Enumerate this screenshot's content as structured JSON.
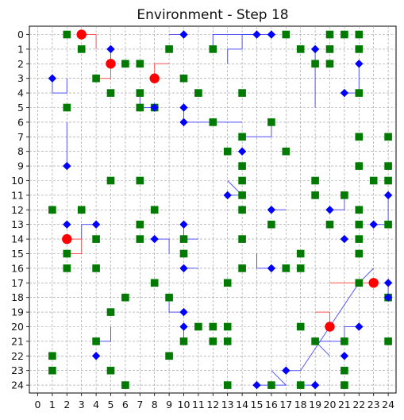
{
  "title": "Environment - Step 18",
  "grid": {
    "cols": 25,
    "rows": 25,
    "x_ticks": [
      "0",
      "1",
      "2",
      "3",
      "4",
      "5",
      "6",
      "7",
      "8",
      "9",
      "10",
      "11",
      "12",
      "13",
      "14",
      "15",
      "16",
      "17",
      "18",
      "19",
      "20",
      "21",
      "22",
      "23",
      "24"
    ],
    "y_ticks": [
      "0",
      "1",
      "2",
      "3",
      "4",
      "5",
      "6",
      "7",
      "8",
      "9",
      "10",
      "11",
      "12",
      "13",
      "14",
      "15",
      "16",
      "17",
      "18",
      "19",
      "20",
      "21",
      "22",
      "23",
      "24"
    ],
    "y_inverted": true,
    "gridlines": "dashed"
  },
  "colors": {
    "resource": "#007a00",
    "agent_blue": "#0000ff",
    "agent_red": "#ff0000",
    "trail_blue": "#3a3aff",
    "trail_red": "#ff3a3a",
    "grid": "#9a9a9a"
  },
  "resources": [
    [
      2,
      0
    ],
    [
      20,
      0
    ],
    [
      21,
      0
    ],
    [
      22,
      0
    ],
    [
      17,
      0
    ],
    [
      3,
      1
    ],
    [
      9,
      1
    ],
    [
      12,
      1
    ],
    [
      18,
      1
    ],
    [
      20,
      1
    ],
    [
      22,
      1
    ],
    [
      6,
      2
    ],
    [
      7,
      2
    ],
    [
      19,
      2
    ],
    [
      20,
      2
    ],
    [
      4,
      3
    ],
    [
      10,
      3
    ],
    [
      5,
      4
    ],
    [
      7,
      4
    ],
    [
      11,
      4
    ],
    [
      14,
      4
    ],
    [
      22,
      4
    ],
    [
      2,
      5
    ],
    [
      7,
      5
    ],
    [
      8,
      5
    ],
    [
      12,
      6
    ],
    [
      16,
      6
    ],
    [
      14,
      7
    ],
    [
      22,
      7
    ],
    [
      24,
      7
    ],
    [
      13,
      8
    ],
    [
      17,
      8
    ],
    [
      14,
      9
    ],
    [
      22,
      9
    ],
    [
      24,
      9
    ],
    [
      5,
      10
    ],
    [
      7,
      10
    ],
    [
      14,
      10
    ],
    [
      19,
      10
    ],
    [
      23,
      10
    ],
    [
      24,
      10
    ],
    [
      14,
      11
    ],
    [
      19,
      11
    ],
    [
      21,
      11
    ],
    [
      1,
      12
    ],
    [
      3,
      12
    ],
    [
      8,
      12
    ],
    [
      14,
      12
    ],
    [
      22,
      12
    ],
    [
      7,
      13
    ],
    [
      16,
      13
    ],
    [
      20,
      13
    ],
    [
      22,
      13
    ],
    [
      24,
      13
    ],
    [
      4,
      14
    ],
    [
      7,
      14
    ],
    [
      10,
      14
    ],
    [
      14,
      14
    ],
    [
      22,
      14
    ],
    [
      2,
      15
    ],
    [
      10,
      15
    ],
    [
      18,
      15
    ],
    [
      22,
      15
    ],
    [
      2,
      16
    ],
    [
      4,
      16
    ],
    [
      14,
      16
    ],
    [
      17,
      16
    ],
    [
      18,
      16
    ],
    [
      8,
      17
    ],
    [
      13,
      17
    ],
    [
      22,
      17
    ],
    [
      6,
      18
    ],
    [
      9,
      18
    ],
    [
      24,
      18
    ],
    [
      5,
      19
    ],
    [
      11,
      20
    ],
    [
      12,
      20
    ],
    [
      13,
      20
    ],
    [
      18,
      20
    ],
    [
      4,
      21
    ],
    [
      10,
      21
    ],
    [
      12,
      21
    ],
    [
      13,
      21
    ],
    [
      19,
      21
    ],
    [
      21,
      21
    ],
    [
      24,
      21
    ],
    [
      1,
      22
    ],
    [
      9,
      22
    ],
    [
      1,
      23
    ],
    [
      5,
      23
    ],
    [
      21,
      23
    ],
    [
      6,
      24
    ],
    [
      13,
      24
    ],
    [
      16,
      24
    ],
    [
      18,
      24
    ],
    [
      21,
      24
    ]
  ],
  "blue_agents": [
    [
      10,
      0
    ],
    [
      15,
      0
    ],
    [
      16,
      0
    ],
    [
      5,
      1
    ],
    [
      19,
      1
    ],
    [
      22,
      2
    ],
    [
      1,
      3
    ],
    [
      21,
      4
    ],
    [
      8,
      5
    ],
    [
      10,
      5
    ],
    [
      10,
      6
    ],
    [
      14,
      8
    ],
    [
      2,
      9
    ],
    [
      13,
      11
    ],
    [
      24,
      11
    ],
    [
      16,
      12
    ],
    [
      20,
      12
    ],
    [
      2,
      13
    ],
    [
      4,
      13
    ],
    [
      10,
      13
    ],
    [
      23,
      13
    ],
    [
      8,
      14
    ],
    [
      21,
      14
    ],
    [
      10,
      16
    ],
    [
      16,
      16
    ],
    [
      24,
      17
    ],
    [
      24,
      18
    ],
    [
      10,
      19
    ],
    [
      10,
      20
    ],
    [
      22,
      20
    ],
    [
      4,
      22
    ],
    [
      21,
      22
    ],
    [
      17,
      23
    ],
    [
      15,
      24
    ],
    [
      19,
      24
    ]
  ],
  "red_agents": [
    [
      3,
      0
    ],
    [
      5,
      2
    ],
    [
      8,
      3
    ],
    [
      2,
      14
    ],
    [
      23,
      17
    ],
    [
      20,
      20
    ]
  ],
  "blue_trails": [
    [
      [
        10,
        0
      ],
      [
        9,
        0
      ]
    ],
    [
      [
        15,
        0
      ],
      [
        12,
        0
      ],
      [
        12,
        1
      ]
    ],
    [
      [
        16,
        0
      ],
      [
        14,
        0
      ],
      [
        14,
        1
      ],
      [
        13,
        1
      ],
      [
        13,
        2
      ]
    ],
    [
      [
        5,
        1
      ],
      [
        5,
        2
      ]
    ],
    [
      [
        19,
        1
      ],
      [
        19,
        5
      ]
    ],
    [
      [
        1,
        3
      ],
      [
        1,
        4
      ],
      [
        2,
        4
      ],
      [
        2,
        3
      ]
    ],
    [
      [
        21,
        4
      ],
      [
        22,
        4
      ],
      [
        22,
        2
      ]
    ],
    [
      [
        10,
        5
      ],
      [
        10,
        6
      ],
      [
        14,
        6
      ]
    ],
    [
      [
        16,
        6
      ],
      [
        16,
        7
      ],
      [
        14,
        7
      ]
    ],
    [
      [
        2,
        9
      ],
      [
        2,
        6
      ]
    ],
    [
      [
        13,
        11
      ],
      [
        14,
        11
      ],
      [
        13,
        10
      ]
    ],
    [
      [
        24,
        11
      ],
      [
        24,
        13
      ]
    ],
    [
      [
        16,
        12
      ],
      [
        17,
        12
      ]
    ],
    [
      [
        20,
        12
      ],
      [
        21,
        12
      ],
      [
        21,
        11
      ]
    ],
    [
      [
        23,
        13
      ],
      [
        24,
        13
      ]
    ],
    [
      [
        8,
        14
      ],
      [
        9,
        14
      ],
      [
        9,
        15
      ]
    ],
    [
      [
        10,
        13
      ],
      [
        10,
        14
      ],
      [
        11,
        14
      ]
    ],
    [
      [
        10,
        16
      ],
      [
        11,
        16
      ]
    ],
    [
      [
        16,
        16
      ],
      [
        15,
        16
      ],
      [
        15,
        15
      ]
    ],
    [
      [
        24,
        17
      ],
      [
        24,
        18
      ]
    ],
    [
      [
        10,
        19
      ],
      [
        9,
        19
      ],
      [
        9,
        18
      ]
    ],
    [
      [
        10,
        20
      ],
      [
        10,
        21
      ]
    ],
    [
      [
        4,
        21
      ],
      [
        5,
        21
      ],
      [
        5,
        20
      ]
    ],
    [
      [
        17,
        23
      ],
      [
        18,
        23
      ],
      [
        22,
        17
      ],
      [
        23,
        16
      ]
    ],
    [
      [
        15,
        24
      ],
      [
        17,
        24
      ],
      [
        16,
        23
      ]
    ],
    [
      [
        19,
        24
      ],
      [
        18,
        24
      ]
    ],
    [
      [
        22,
        20
      ],
      [
        21,
        20
      ],
      [
        21,
        21
      ]
    ],
    [
      [
        21,
        21
      ],
      [
        19,
        21
      ],
      [
        20,
        22
      ]
    ],
    [
      [
        8,
        5
      ],
      [
        7,
        5
      ],
      [
        7,
        4
      ]
    ],
    [
      [
        4,
        13
      ],
      [
        3,
        13
      ],
      [
        3,
        14
      ]
    ]
  ],
  "red_trails": [
    [
      [
        3,
        0
      ],
      [
        4,
        0
      ],
      [
        4,
        1
      ]
    ],
    [
      [
        5,
        2
      ],
      [
        5,
        3
      ],
      [
        4,
        3
      ]
    ],
    [
      [
        8,
        3
      ],
      [
        8,
        2
      ],
      [
        9,
        2
      ]
    ],
    [
      [
        2,
        14
      ],
      [
        3,
        14
      ],
      [
        3,
        15
      ],
      [
        2,
        15
      ]
    ],
    [
      [
        23,
        17
      ],
      [
        20,
        17
      ]
    ],
    [
      [
        20,
        20
      ],
      [
        20,
        19
      ],
      [
        19,
        19
      ]
    ]
  ]
}
